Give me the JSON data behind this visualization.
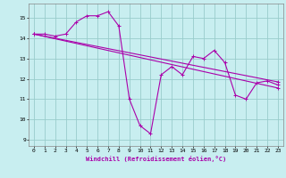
{
  "xlabel": "Windchill (Refroidissement éolien,°C)",
  "bg_color": "#c8eef0",
  "grid_color": "#99cccc",
  "line_color": "#aa00aa",
  "xlim": [
    -0.5,
    23.5
  ],
  "ylim": [
    8.7,
    15.7
  ],
  "yticks": [
    9,
    10,
    11,
    12,
    13,
    14,
    15
  ],
  "xticks": [
    0,
    1,
    2,
    3,
    4,
    5,
    6,
    7,
    8,
    9,
    10,
    11,
    12,
    13,
    14,
    15,
    16,
    17,
    18,
    19,
    20,
    21,
    22,
    23
  ],
  "line1_x": [
    0,
    1,
    2,
    3,
    4,
    5,
    6,
    7,
    8,
    9,
    10,
    11,
    12,
    13,
    14,
    15,
    16,
    17,
    18,
    19,
    20,
    21,
    22,
    23
  ],
  "line1_y": [
    14.2,
    14.2,
    14.1,
    14.2,
    14.8,
    15.1,
    15.1,
    15.3,
    14.6,
    11.0,
    9.7,
    9.3,
    12.2,
    12.6,
    12.2,
    13.1,
    13.0,
    13.4,
    12.8,
    11.2,
    11.0,
    11.8,
    11.9,
    11.7
  ],
  "line2_x": [
    0,
    23
  ],
  "line2_y": [
    14.2,
    11.55
  ],
  "line3_x": [
    0,
    23
  ],
  "line3_y": [
    14.2,
    11.85
  ]
}
